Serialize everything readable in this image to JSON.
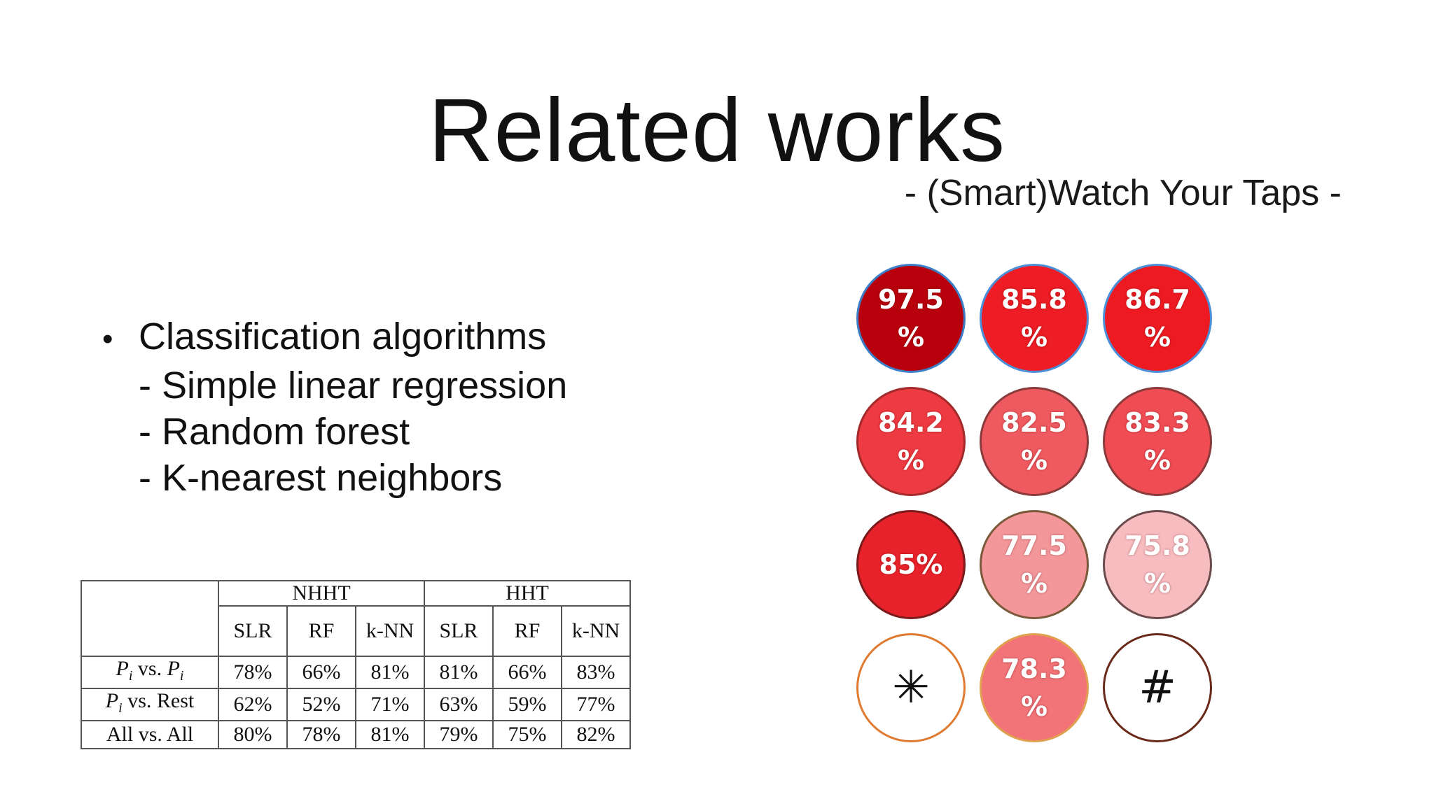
{
  "slide": {
    "title": "Related works",
    "subtitle": "- (Smart)Watch Your Taps -"
  },
  "bullets": {
    "marker": "•",
    "heading": "Classification algorithms",
    "items": [
      "- Simple linear regression",
      "- Random forest",
      "- K-nearest neighbors"
    ]
  },
  "table": {
    "groups": [
      "NHHT",
      "HHT"
    ],
    "subheaders": [
      "SLR",
      "RF",
      "k-NN",
      "SLR",
      "RF",
      "k-NN"
    ],
    "rows": [
      {
        "label": "Pi vs. Pi",
        "values": [
          "78%",
          "66%",
          "81%",
          "81%",
          "66%",
          "83%"
        ]
      },
      {
        "label": "Pi vs. Rest",
        "values": [
          "62%",
          "52%",
          "71%",
          "63%",
          "59%",
          "77%"
        ]
      },
      {
        "label": "All vs. All",
        "values": [
          "80%",
          "78%",
          "81%",
          "79%",
          "75%",
          "82%"
        ]
      }
    ]
  },
  "keypad": {
    "keys": [
      {
        "line1": "97.5",
        "line2": "%",
        "fill": "#b8000c",
        "border": "#3a7fc8"
      },
      {
        "line1": "85.8",
        "line2": "%",
        "fill": "#ee1c24",
        "border": "#4a8fd8"
      },
      {
        "line1": "86.7",
        "line2": "%",
        "fill": "#ee1a22",
        "border": "#4a8fd8"
      },
      {
        "line1": "84.2",
        "line2": "%",
        "fill": "#ee3a42",
        "border": "#a22a2a"
      },
      {
        "line1": "82.5",
        "line2": "%",
        "fill": "#ef5a60",
        "border": "#8a3a3a"
      },
      {
        "line1": "83.3",
        "line2": "%",
        "fill": "#ef4c54",
        "border": "#8a3a3a"
      },
      {
        "line1": "85%",
        "line2": "",
        "fill": "#e8222a",
        "border": "#7a1a1a"
      },
      {
        "line1": "77.5",
        "line2": "%",
        "fill": "#f3979b",
        "border": "#7a5a3a"
      },
      {
        "line1": "75.8",
        "line2": "%",
        "fill": "#f7bcc0",
        "border": "#6a4a4a"
      },
      {
        "line1": "✳",
        "line2": "",
        "fill": "#ffffff",
        "border": "#e07a30",
        "icon": "asterisk-icon"
      },
      {
        "line1": "78.3",
        "line2": "%",
        "fill": "#f27478",
        "border": "#e0a050"
      },
      {
        "line1": "#",
        "line2": "",
        "fill": "#ffffff",
        "border": "#6a2a1a",
        "icon": "hash-icon"
      }
    ]
  }
}
